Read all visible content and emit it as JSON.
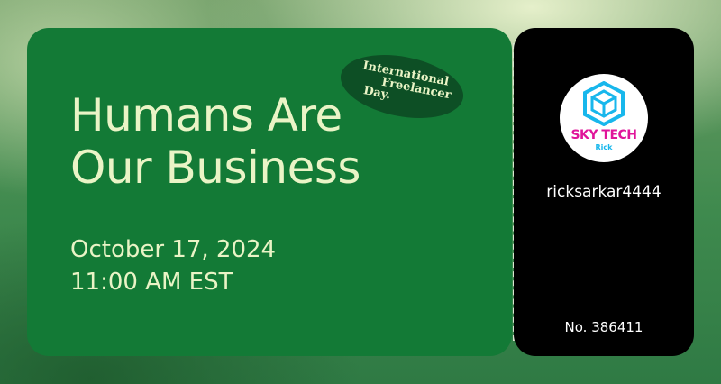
{
  "ticket": {
    "headline": [
      "Humans Are",
      "Our Business"
    ],
    "badge": {
      "line1": "International",
      "line2": "Freelancer",
      "line3": "Day."
    },
    "date": "October 17, 2024",
    "time": "11:00 AM EST"
  },
  "stub": {
    "logo": {
      "icon": "hexagon-cube-icon",
      "title": "SKY TECH",
      "subtitle": "Rick"
    },
    "username": "ricksarkar4444",
    "number": "No. 386411"
  },
  "colors": {
    "ticket_green": "#137a36",
    "text_cream": "#eaf4c6",
    "badge_green": "#0d4f25",
    "stub_black": "#000000",
    "logo_pink": "#e0159a",
    "logo_blue": "#18b7ec"
  }
}
